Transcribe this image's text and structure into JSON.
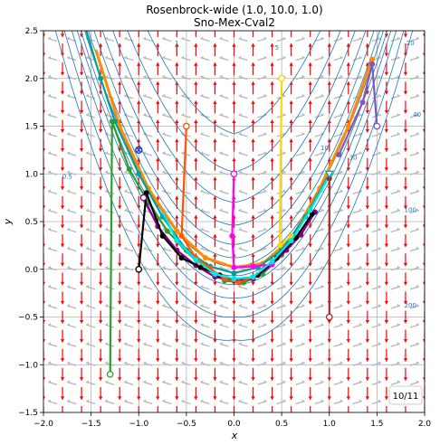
{
  "chart_data": {
    "type": "line",
    "title": "Rosenbrock-wide (1.0, 10.0, 1.0)",
    "subtitle": "Sno-Mex-Cval2",
    "xlabel": "x",
    "ylabel": "y",
    "xlim": [
      -2.0,
      2.0
    ],
    "ylim": [
      -1.5,
      2.5
    ],
    "xticks": [
      "−2.0",
      "−1.5",
      "−1.0",
      "−0.5",
      "0.0",
      "0.5",
      "1.0",
      "1.5",
      "2.0"
    ],
    "yticks": [
      "−1.5",
      "−1.0",
      "−0.5",
      "0.0",
      "0.5",
      "1.0",
      "1.5",
      "2.0",
      "2.5"
    ],
    "grid": true,
    "badge": "10/11",
    "contour_labels": [
      "0.5",
      "1",
      "5",
      "10",
      "20",
      "30",
      "40",
      "100",
      "200"
    ],
    "vector_field_colors": {
      "descent": "#ff0000",
      "ascent": "#bbbbbb"
    },
    "contour_color": "#1f77b4",
    "series": [
      {
        "color": "#ff8c00",
        "points": [
          [
            -1.45,
            2.3
          ],
          [
            -1.2,
            1.5
          ],
          [
            -0.9,
            0.85
          ],
          [
            -0.6,
            0.4
          ],
          [
            -0.3,
            0.12
          ],
          [
            0.0,
            0.02
          ],
          [
            0.3,
            0.06
          ],
          [
            0.6,
            0.32
          ],
          [
            0.9,
            0.85
          ],
          [
            1.2,
            1.5
          ],
          [
            1.45,
            2.2
          ]
        ]
      },
      {
        "color": "#00a0a0",
        "points": [
          [
            -1.55,
            2.5
          ],
          [
            -1.4,
            2.0
          ],
          [
            -1.25,
            1.55
          ],
          [
            -1.0,
            1.0
          ],
          [
            -0.75,
            0.55
          ],
          [
            -0.5,
            0.2
          ],
          [
            -0.25,
            0.03
          ],
          [
            0.0,
            -0.04
          ],
          [
            0.25,
            0.02
          ],
          [
            0.5,
            0.2
          ],
          [
            0.75,
            0.55
          ],
          [
            1.0,
            1.0
          ]
        ]
      },
      {
        "color": "#2ca02c",
        "points": [
          [
            -1.3,
            -1.1
          ],
          [
            -1.28,
            1.55
          ],
          [
            -1.1,
            1.05
          ],
          [
            -0.9,
            0.7
          ],
          [
            -0.7,
            0.4
          ],
          [
            -0.5,
            0.2
          ],
          [
            -0.3,
            0.05
          ],
          [
            -0.1,
            -0.12
          ],
          [
            0.1,
            -0.14
          ],
          [
            0.3,
            -0.05
          ],
          [
            0.5,
            0.15
          ],
          [
            0.7,
            0.38
          ]
        ]
      },
      {
        "color": "#8b008b",
        "points": [
          [
            -0.95,
            0.75
          ],
          [
            -0.8,
            0.45
          ],
          [
            -0.6,
            0.2
          ],
          [
            -0.4,
            0.04
          ],
          [
            -0.2,
            -0.08
          ],
          [
            0.0,
            -0.12
          ],
          [
            0.2,
            -0.1
          ],
          [
            0.4,
            0.05
          ],
          [
            0.55,
            0.2
          ],
          [
            0.7,
            0.36
          ],
          [
            0.85,
            0.6
          ]
        ]
      },
      {
        "color": "#000000",
        "points": [
          [
            -1.0,
            0.0
          ],
          [
            -0.92,
            0.8
          ],
          [
            -0.75,
            0.35
          ],
          [
            -0.55,
            0.12
          ],
          [
            -0.35,
            0.02
          ],
          [
            -0.15,
            -0.06
          ],
          [
            0.05,
            -0.14
          ],
          [
            0.25,
            -0.06
          ],
          [
            0.45,
            0.12
          ],
          [
            0.65,
            0.33
          ],
          [
            0.82,
            0.58
          ]
        ]
      },
      {
        "color": "#ff5500",
        "points": [
          [
            -0.5,
            1.5
          ],
          [
            -0.55,
            0.35
          ],
          [
            -0.4,
            0.12
          ],
          [
            -0.25,
            0.01
          ],
          [
            -0.1,
            -0.1
          ],
          [
            0.05,
            -0.14
          ],
          [
            0.2,
            -0.08
          ]
        ]
      },
      {
        "color": "#ff00ff",
        "points": [
          [
            0.0,
            1.0
          ],
          [
            -0.02,
            0.35
          ],
          [
            0.0,
            0.02
          ],
          [
            0.2,
            0.03
          ],
          [
            0.4,
            0.05
          ]
        ]
      },
      {
        "color": "#ffd700",
        "points": [
          [
            0.5,
            2.0
          ],
          [
            0.48,
            0.25
          ],
          [
            0.6,
            0.35
          ]
        ]
      },
      {
        "color": "#00e5e5",
        "points": [
          [
            -0.75,
            0.6
          ],
          [
            -0.6,
            0.3
          ],
          [
            -0.4,
            0.1
          ],
          [
            -0.2,
            -0.05
          ],
          [
            0.0,
            -0.1
          ],
          [
            0.2,
            -0.08
          ],
          [
            0.4,
            0.08
          ],
          [
            0.6,
            0.3
          ],
          [
            0.8,
            0.62
          ],
          [
            1.0,
            0.98
          ]
        ]
      },
      {
        "color": "#a52a2a",
        "points": [
          [
            1.0,
            -0.5
          ],
          [
            1.0,
            0.95
          ]
        ]
      },
      {
        "color": "#7e57c2",
        "points": [
          [
            1.5,
            1.5
          ],
          [
            1.45,
            2.15
          ],
          [
            1.35,
            1.75
          ],
          [
            1.1,
            1.2
          ]
        ]
      },
      {
        "color": "#1f3fbf",
        "points": [
          [
            -1.0,
            1.25
          ]
        ]
      }
    ],
    "start_points": [
      [
        -1.3,
        -1.1
      ],
      [
        -1.0,
        0.0
      ],
      [
        -0.5,
        1.5
      ],
      [
        0.0,
        1.0
      ],
      [
        0.5,
        2.0
      ],
      [
        1.0,
        -0.5
      ],
      [
        1.5,
        1.5
      ],
      [
        -0.95,
        0.75
      ]
    ]
  }
}
